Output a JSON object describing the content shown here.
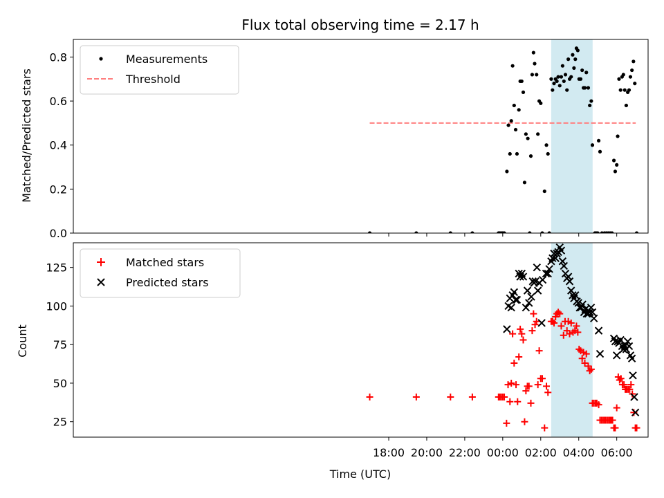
{
  "figure_title": "Flux total observing time = 2.17 h",
  "xlabel": "Time (UTC)",
  "x_ticks": [
    "18:00",
    "20:00",
    "22:00",
    "00:00",
    "02:00",
    "04:00",
    "06:00"
  ],
  "chart_data": [
    {
      "type": "scatter",
      "title": "Flux total observing time = 2.17 h",
      "xlabel": "Time (UTC)",
      "ylabel": "Matched/Predicted stars",
      "x_unit": "hours since 00:00 UTC",
      "xlim": [
        -22.6,
        7.65
      ],
      "ylim": [
        0,
        0.88
      ],
      "y_ticks": [
        0.0,
        0.2,
        0.4,
        0.6,
        0.8
      ],
      "grid": false,
      "legend_position": "top-left",
      "shaded_region": {
        "x": [
          2.55,
          4.73
        ],
        "color": "#add8e6"
      },
      "threshold": {
        "name": "Threshold",
        "y": 0.5,
        "x": [
          -7.0,
          7.0
        ],
        "style": "dashed",
        "color": "#ff7f7f"
      },
      "series": [
        {
          "name": "Measurements",
          "color": "#000000",
          "points": [
            [
              -7.0,
              0.0
            ],
            [
              -4.55,
              0.0
            ],
            [
              -2.75,
              0.0
            ],
            [
              -1.6,
              0.0
            ],
            [
              -0.22,
              0.0
            ],
            [
              -0.15,
              0.0
            ],
            [
              -0.08,
              0.0
            ],
            [
              0.0,
              0.0
            ],
            [
              0.08,
              0.0
            ],
            [
              0.22,
              0.28
            ],
            [
              0.3,
              0.49
            ],
            [
              0.38,
              0.36
            ],
            [
              0.45,
              0.51
            ],
            [
              0.52,
              0.76
            ],
            [
              0.6,
              0.58
            ],
            [
              0.68,
              0.47
            ],
            [
              0.75,
              0.36
            ],
            [
              0.85,
              0.56
            ],
            [
              0.92,
              0.69
            ],
            [
              1.0,
              0.69
            ],
            [
              1.08,
              0.64
            ],
            [
              1.15,
              0.23
            ],
            [
              1.22,
              0.45
            ],
            [
              1.32,
              0.43
            ],
            [
              1.42,
              0.0
            ],
            [
              1.48,
              0.35
            ],
            [
              1.55,
              0.72
            ],
            [
              1.62,
              0.82
            ],
            [
              1.68,
              0.77
            ],
            [
              1.78,
              0.72
            ],
            [
              1.85,
              0.45
            ],
            [
              1.92,
              0.6
            ],
            [
              2.0,
              0.59
            ],
            [
              2.08,
              0.0
            ],
            [
              2.2,
              0.19
            ],
            [
              2.3,
              0.4
            ],
            [
              2.38,
              0.36
            ],
            [
              2.45,
              0.0
            ],
            [
              2.55,
              0.7
            ],
            [
              2.62,
              0.65
            ],
            [
              2.7,
              0.68
            ],
            [
              2.78,
              0.7
            ],
            [
              2.85,
              0.69
            ],
            [
              2.92,
              0.71
            ],
            [
              3.0,
              0.67
            ],
            [
              3.08,
              0.71
            ],
            [
              3.15,
              0.76
            ],
            [
              3.22,
              0.69
            ],
            [
              3.3,
              0.72
            ],
            [
              3.38,
              0.65
            ],
            [
              3.45,
              0.79
            ],
            [
              3.52,
              0.7
            ],
            [
              3.6,
              0.71
            ],
            [
              3.68,
              0.81
            ],
            [
              3.75,
              0.75
            ],
            [
              3.82,
              0.79
            ],
            [
              3.88,
              0.84
            ],
            [
              3.95,
              0.83
            ],
            [
              4.02,
              0.7
            ],
            [
              4.1,
              0.7
            ],
            [
              4.18,
              0.74
            ],
            [
              4.25,
              0.66
            ],
            [
              4.32,
              0.66
            ],
            [
              4.4,
              0.73
            ],
            [
              4.5,
              0.66
            ],
            [
              4.58,
              0.58
            ],
            [
              4.66,
              0.6
            ],
            [
              4.72,
              0.4
            ],
            [
              4.85,
              0.0
            ],
            [
              4.92,
              0.0
            ],
            [
              5.0,
              0.0
            ],
            [
              5.05,
              0.42
            ],
            [
              5.12,
              0.37
            ],
            [
              5.22,
              0.0
            ],
            [
              5.35,
              0.0
            ],
            [
              5.45,
              0.0
            ],
            [
              5.55,
              0.0
            ],
            [
              5.65,
              0.0
            ],
            [
              5.75,
              0.0
            ],
            [
              5.85,
              0.33
            ],
            [
              5.92,
              0.28
            ],
            [
              6.0,
              0.31
            ],
            [
              6.05,
              0.44
            ],
            [
              6.12,
              0.7
            ],
            [
              6.2,
              0.65
            ],
            [
              6.28,
              0.71
            ],
            [
              6.35,
              0.72
            ],
            [
              6.42,
              0.65
            ],
            [
              6.5,
              0.58
            ],
            [
              6.58,
              0.64
            ],
            [
              6.65,
              0.65
            ],
            [
              6.72,
              0.71
            ],
            [
              6.8,
              0.74
            ],
            [
              6.88,
              0.78
            ],
            [
              6.95,
              0.68
            ],
            [
              7.05,
              0.0
            ]
          ]
        }
      ]
    },
    {
      "type": "scatter",
      "xlabel": "Time (UTC)",
      "ylabel": "Count",
      "x_unit": "hours since 00:00 UTC",
      "xlim": [
        -22.6,
        7.65
      ],
      "ylim": [
        15,
        141
      ],
      "y_ticks": [
        25,
        50,
        75,
        100,
        125
      ],
      "grid": false,
      "legend_position": "top-left",
      "shaded_region": {
        "x": [
          2.55,
          4.73
        ],
        "color": "#add8e6"
      },
      "series": [
        {
          "name": "Matched stars",
          "marker": "+",
          "color": "#ff0000",
          "points": [
            [
              -7.0,
              41
            ],
            [
              -4.55,
              41
            ],
            [
              -2.75,
              41
            ],
            [
              -1.6,
              41
            ],
            [
              -0.22,
              41
            ],
            [
              -0.15,
              41
            ],
            [
              -0.08,
              41
            ],
            [
              0.0,
              41
            ],
            [
              0.08,
              41
            ],
            [
              0.2,
              24
            ],
            [
              0.28,
              49
            ],
            [
              0.38,
              38
            ],
            [
              0.45,
              50
            ],
            [
              0.52,
              82
            ],
            [
              0.6,
              63
            ],
            [
              0.7,
              49
            ],
            [
              0.78,
              38
            ],
            [
              0.85,
              67
            ],
            [
              0.92,
              85
            ],
            [
              1.0,
              82
            ],
            [
              1.08,
              78
            ],
            [
              1.15,
              25
            ],
            [
              1.22,
              45
            ],
            [
              1.3,
              48
            ],
            [
              1.38,
              48
            ],
            [
              1.48,
              37
            ],
            [
              1.55,
              84
            ],
            [
              1.62,
              95
            ],
            [
              1.7,
              88
            ],
            [
              1.78,
              90
            ],
            [
              1.85,
              49
            ],
            [
              1.92,
              71
            ],
            [
              2.0,
              53
            ],
            [
              2.08,
              53
            ],
            [
              2.2,
              21
            ],
            [
              2.3,
              48
            ],
            [
              2.38,
              44
            ],
            [
              2.55,
              90
            ],
            [
              2.62,
              90
            ],
            [
              2.7,
              89
            ],
            [
              2.78,
              93
            ],
            [
              2.85,
              95
            ],
            [
              2.92,
              96
            ],
            [
              3.0,
              95
            ],
            [
              3.08,
              87
            ],
            [
              3.2,
              81
            ],
            [
              3.28,
              90
            ],
            [
              3.38,
              84
            ],
            [
              3.45,
              90
            ],
            [
              3.52,
              82
            ],
            [
              3.6,
              89
            ],
            [
              3.7,
              83
            ],
            [
              3.8,
              84
            ],
            [
              3.88,
              87
            ],
            [
              3.95,
              83
            ],
            [
              4.02,
              72
            ],
            [
              4.1,
              71
            ],
            [
              4.18,
              66
            ],
            [
              4.25,
              70
            ],
            [
              4.32,
              63
            ],
            [
              4.4,
              69
            ],
            [
              4.5,
              61
            ],
            [
              4.58,
              58
            ],
            [
              4.66,
              59
            ],
            [
              4.72,
              37
            ],
            [
              4.8,
              37
            ],
            [
              4.88,
              37
            ],
            [
              4.95,
              37
            ],
            [
              5.05,
              36
            ],
            [
              5.12,
              26
            ],
            [
              5.2,
              26
            ],
            [
              5.28,
              26
            ],
            [
              5.35,
              26
            ],
            [
              5.42,
              26
            ],
            [
              5.5,
              26
            ],
            [
              5.58,
              26
            ],
            [
              5.65,
              26
            ],
            [
              5.72,
              26
            ],
            [
              5.78,
              26
            ],
            [
              5.85,
              21
            ],
            [
              5.92,
              21
            ],
            [
              6.0,
              34
            ],
            [
              6.08,
              54
            ],
            [
              6.15,
              52
            ],
            [
              6.22,
              53
            ],
            [
              6.3,
              49
            ],
            [
              6.38,
              49
            ],
            [
              6.45,
              46
            ],
            [
              6.52,
              46
            ],
            [
              6.6,
              46
            ],
            [
              6.68,
              46
            ],
            [
              6.75,
              49
            ],
            [
              6.82,
              43
            ],
            [
              6.9,
              31
            ],
            [
              6.98,
              21
            ],
            [
              7.05,
              21
            ]
          ]
        },
        {
          "name": "Predicted stars",
          "marker": "x",
          "color": "#000000",
          "points": [
            [
              0.22,
              85
            ],
            [
              0.3,
              100
            ],
            [
              0.38,
              105
            ],
            [
              0.45,
              99
            ],
            [
              0.52,
              107
            ],
            [
              0.6,
              109
            ],
            [
              0.68,
              104
            ],
            [
              0.75,
              104
            ],
            [
              0.85,
              121
            ],
            [
              0.92,
              119
            ],
            [
              1.0,
              121
            ],
            [
              1.08,
              119
            ],
            [
              1.22,
              99
            ],
            [
              1.3,
              110
            ],
            [
              1.38,
              102
            ],
            [
              1.5,
              106
            ],
            [
              1.58,
              116
            ],
            [
              1.65,
              115
            ],
            [
              1.72,
              116
            ],
            [
              1.8,
              125
            ],
            [
              1.85,
              110
            ],
            [
              1.92,
              115
            ],
            [
              2.05,
              89
            ],
            [
              2.1,
              117
            ],
            [
              2.28,
              121
            ],
            [
              2.38,
              121
            ],
            [
              2.45,
              124
            ],
            [
              2.55,
              129
            ],
            [
              2.62,
              131
            ],
            [
              2.7,
              134
            ],
            [
              2.78,
              131
            ],
            [
              2.85,
              134
            ],
            [
              2.92,
              135
            ],
            [
              3.0,
              138
            ],
            [
              3.08,
              136
            ],
            [
              3.15,
              129
            ],
            [
              3.22,
              126
            ],
            [
              3.3,
              121
            ],
            [
              3.38,
              118
            ],
            [
              3.45,
              119
            ],
            [
              3.52,
              116
            ],
            [
              3.6,
              110
            ],
            [
              3.68,
              107
            ],
            [
              3.75,
              105
            ],
            [
              3.82,
              107
            ],
            [
              3.9,
              103
            ],
            [
              3.98,
              102
            ],
            [
              4.05,
              99
            ],
            [
              4.12,
              99
            ],
            [
              4.2,
              101
            ],
            [
              4.28,
              96
            ],
            [
              4.35,
              98
            ],
            [
              4.42,
              95
            ],
            [
              4.5,
              95
            ],
            [
              4.58,
              96
            ],
            [
              4.65,
              99
            ],
            [
              4.72,
              96
            ],
            [
              4.8,
              92
            ],
            [
              5.05,
              84
            ],
            [
              5.12,
              69
            ],
            [
              5.85,
              79
            ],
            [
              5.92,
              77
            ],
            [
              6.0,
              68
            ],
            [
              6.05,
              77
            ],
            [
              6.12,
              76
            ],
            [
              6.2,
              78
            ],
            [
              6.28,
              74
            ],
            [
              6.35,
              72
            ],
            [
              6.42,
              74
            ],
            [
              6.5,
              72
            ],
            [
              6.58,
              77
            ],
            [
              6.65,
              74
            ],
            [
              6.72,
              68
            ],
            [
              6.8,
              66
            ],
            [
              6.85,
              55
            ],
            [
              6.92,
              41
            ],
            [
              6.98,
              31
            ]
          ]
        }
      ]
    }
  ]
}
